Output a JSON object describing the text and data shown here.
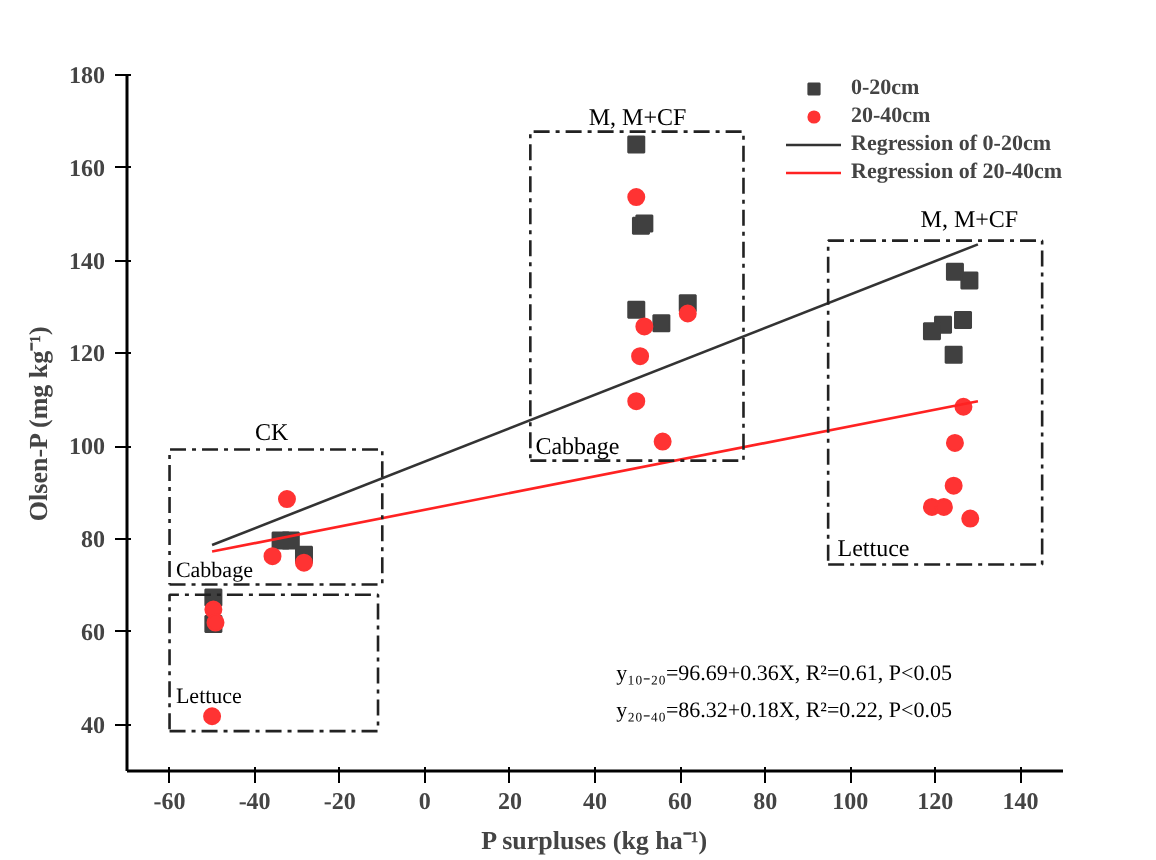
{
  "chart_data": {
    "type": "scatter",
    "xlabel": "P surpluses (kg ha⁻¹)",
    "ylabel": "Olsen-P (mg kg⁻¹)",
    "xlim": [
      -70,
      150
    ],
    "ylim": [
      30,
      180
    ],
    "xticks": [
      -60,
      -40,
      -20,
      0,
      20,
      40,
      60,
      80,
      100,
      120,
      140
    ],
    "yticks": [
      40,
      60,
      80,
      100,
      120,
      140,
      160,
      180
    ],
    "grid": false,
    "legend": "top right",
    "series": [
      {
        "name": "0-20cm",
        "marker": "square",
        "color": "#404040",
        "x": [
          -33.9,
          -31.5,
          -28.4,
          -49.7,
          -49.7,
          49.7,
          50.8,
          51.6,
          49.7,
          55.6,
          61.8,
          124.6,
          128,
          126.5,
          121.8,
          119.2,
          124.3
        ],
        "values": [
          79.7,
          79.7,
          76.6,
          67.4,
          61.7,
          165,
          147.5,
          148,
          129.4,
          126.5,
          130.8,
          137.6,
          135.7,
          127.2,
          126.2,
          124.8,
          119.7
        ]
      },
      {
        "name": "20-40cm",
        "marker": "circle",
        "color": "#ff3333",
        "x": [
          -32.4,
          -35.8,
          -28.4,
          -49.7,
          -49.2,
          -50,
          49.7,
          51.6,
          61.8,
          50.6,
          49.7,
          55.9,
          126.6,
          124.6,
          124.3,
          119.2,
          122,
          128.2
        ],
        "values": [
          88.6,
          76.3,
          74.9,
          64.8,
          62,
          41.8,
          153.7,
          125.8,
          128.6,
          119.4,
          109.7,
          101,
          108.5,
          100.7,
          91.5,
          86.9,
          86.9,
          84.4
        ]
      },
      {
        "name": "Regression of 0-20cm",
        "type": "line",
        "marker": "none",
        "line_style": "solid",
        "color": "#333333",
        "x": [
          -50,
          130
        ],
        "values": [
          78.7,
          143.5
        ]
      },
      {
        "name": "Regression of 20-40cm",
        "type": "line",
        "marker": "none",
        "line_style": "solid",
        "color": "#ff2222",
        "x": [
          -50,
          130
        ],
        "values": [
          77.3,
          109.7
        ]
      }
    ],
    "annotations": [
      "CK",
      "Cabbage",
      "Lettuce",
      "M, M+CF",
      "Cabbage",
      "M, M+CF",
      "Lettuce",
      "y₁₀₋₂₀=96.69+0.36X, R²=0.61, P<0.05",
      "y₂₀₋₄₀=86.32+0.18X, R²=0.22, P<0.05"
    ]
  }
}
